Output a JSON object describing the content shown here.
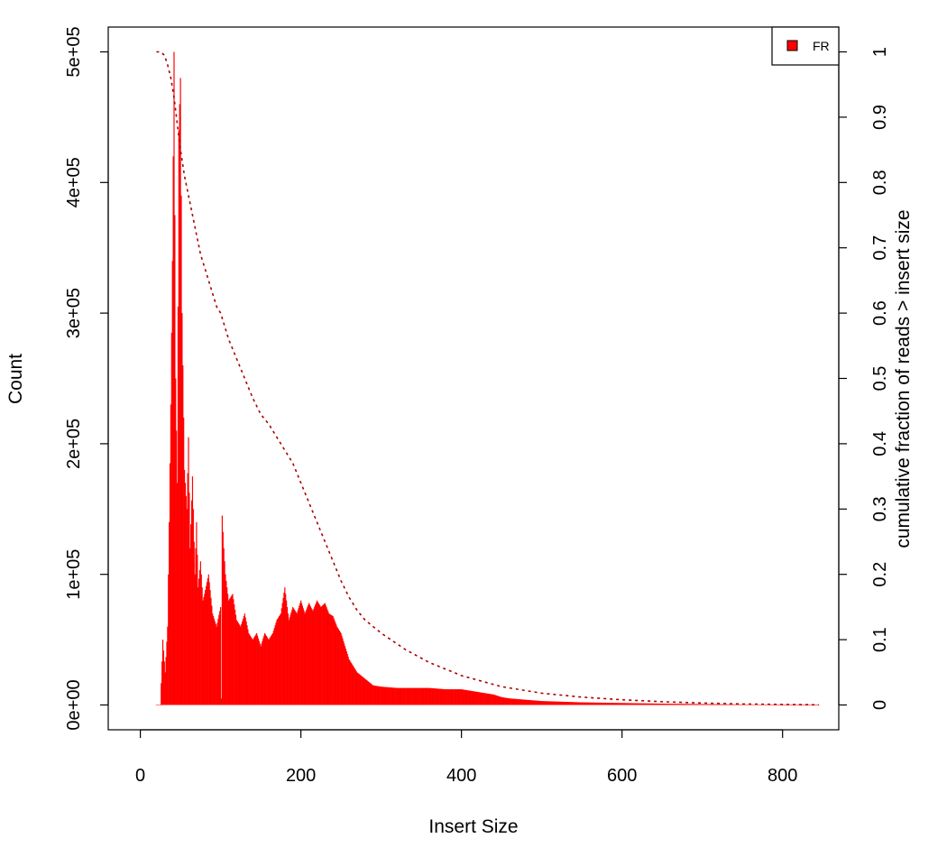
{
  "chart_data": {
    "type": "bar",
    "title": "",
    "xlabel": "Insert Size",
    "ylabel": "Count",
    "y2label": "cumulative fraction of reads > insert size",
    "xlim": [
      -40,
      870
    ],
    "ylim": [
      -19000,
      519000
    ],
    "y2lim": [
      -0.038,
      1.038
    ],
    "xticks": [
      0,
      200,
      400,
      600,
      800
    ],
    "xtick_labels": [
      "0",
      "200",
      "400",
      "600",
      "800"
    ],
    "yticks": [
      0,
      100000,
      200000,
      300000,
      400000,
      500000
    ],
    "ytick_labels": [
      "0e+00",
      "1e+05",
      "2e+05",
      "3e+05",
      "4e+05",
      "5e+05"
    ],
    "y2ticks": [
      0,
      0.1,
      0.2,
      0.3,
      0.4,
      0.5,
      0.6,
      0.7,
      0.8,
      0.9,
      1
    ],
    "y2tick_labels": [
      "0",
      "0.1",
      "0.2",
      "0.3",
      "0.4",
      "0.5",
      "0.6",
      "0.7",
      "0.8",
      "0.9",
      "1"
    ],
    "legend": {
      "placement": "top-right",
      "entries": [
        {
          "label": "FR",
          "color": "#ff0000"
        }
      ]
    },
    "grid": false,
    "bar_color": "#ff0000",
    "cumulative_color": "#aa0000",
    "histogram": {
      "x": [
        20,
        25,
        28,
        31,
        34,
        36,
        38,
        40,
        42,
        44,
        46,
        48,
        50,
        52,
        55,
        58,
        60,
        62,
        65,
        68,
        70,
        72,
        75,
        78,
        80,
        85,
        90,
        95,
        100,
        101,
        102,
        104,
        106,
        110,
        115,
        120,
        125,
        130,
        135,
        140,
        145,
        150,
        155,
        160,
        165,
        170,
        175,
        180,
        185,
        190,
        195,
        200,
        205,
        210,
        215,
        220,
        225,
        230,
        235,
        240,
        245,
        250,
        255,
        260,
        270,
        280,
        290,
        300,
        320,
        340,
        360,
        380,
        400,
        410,
        420,
        430,
        440,
        450,
        460,
        480,
        500,
        550,
        600,
        650,
        700,
        750,
        800,
        845
      ],
      "values": [
        0,
        0,
        50000,
        25000,
        60000,
        140000,
        230000,
        340000,
        500000,
        250000,
        170000,
        440000,
        480000,
        300000,
        180000,
        150000,
        205000,
        120000,
        175000,
        100000,
        140000,
        90000,
        110000,
        80000,
        85000,
        100000,
        70000,
        60000,
        75000,
        5000,
        145000,
        120000,
        100000,
        80000,
        85000,
        65000,
        60000,
        70000,
        55000,
        50000,
        55000,
        45000,
        55000,
        50000,
        55000,
        65000,
        70000,
        90000,
        65000,
        75000,
        70000,
        80000,
        70000,
        78000,
        72000,
        80000,
        75000,
        78000,
        70000,
        68000,
        60000,
        55000,
        45000,
        35000,
        25000,
        20000,
        15000,
        14000,
        13000,
        13000,
        13000,
        12000,
        12000,
        11000,
        10000,
        9000,
        8000,
        6000,
        5000,
        4000,
        3000,
        2000,
        1500,
        1000,
        700,
        400,
        200,
        100
      ]
    },
    "cumulative": {
      "x": [
        20,
        25,
        30,
        34,
        38,
        42,
        46,
        50,
        55,
        60,
        65,
        70,
        75,
        80,
        85,
        90,
        95,
        100,
        105,
        110,
        120,
        130,
        140,
        150,
        160,
        170,
        180,
        190,
        200,
        210,
        220,
        230,
        240,
        250,
        260,
        270,
        280,
        300,
        330,
        360,
        400,
        450,
        500,
        550,
        600,
        650,
        700,
        750,
        800,
        845
      ],
      "values": [
        1.0,
        1.0,
        0.995,
        0.98,
        0.96,
        0.93,
        0.89,
        0.85,
        0.81,
        0.78,
        0.75,
        0.72,
        0.69,
        0.67,
        0.65,
        0.63,
        0.61,
        0.6,
        0.58,
        0.56,
        0.53,
        0.5,
        0.47,
        0.445,
        0.43,
        0.41,
        0.39,
        0.37,
        0.34,
        0.31,
        0.28,
        0.25,
        0.22,
        0.19,
        0.165,
        0.145,
        0.13,
        0.11,
        0.085,
        0.065,
        0.045,
        0.028,
        0.018,
        0.012,
        0.008,
        0.005,
        0.003,
        0.0015,
        0.0008,
        0.0002
      ]
    }
  }
}
